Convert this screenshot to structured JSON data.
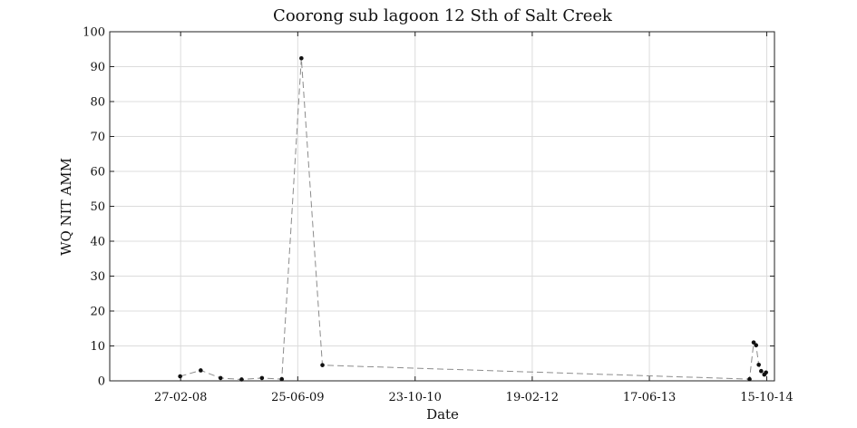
{
  "chart_data": {
    "type": "line",
    "title": "Coorong sub lagoon 12 Sth of Salt Creek",
    "xlabel": "Date",
    "ylabel": "WQ NIT AMM",
    "x_tick_labels": [
      "27-02-08",
      "25-06-09",
      "23-10-10",
      "19-02-12",
      "17-06-13",
      "15-10-14"
    ],
    "x_tick_dates": [
      "2008-02-27",
      "2009-06-25",
      "2010-10-23",
      "2012-02-19",
      "2013-06-17",
      "2014-10-15"
    ],
    "xlim": [
      "2007-05-10",
      "2014-11-16"
    ],
    "ylim": [
      0,
      100
    ],
    "y_ticks": [
      0,
      10,
      20,
      30,
      40,
      50,
      60,
      70,
      80,
      90,
      100
    ],
    "grid": true,
    "series": [
      {
        "color": "#8c8c8c",
        "line_style": "dashed",
        "marker": "dot",
        "points": [
          {
            "x": "2008-02-25",
            "y": 1.3
          },
          {
            "x": "2008-05-20",
            "y": 3.0
          },
          {
            "x": "2008-08-10",
            "y": 0.8
          },
          {
            "x": "2008-11-05",
            "y": 0.4
          },
          {
            "x": "2009-01-28",
            "y": 0.8
          },
          {
            "x": "2009-04-20",
            "y": 0.5
          },
          {
            "x": "2009-07-10",
            "y": 92.4
          },
          {
            "x": "2009-10-05",
            "y": 4.5
          },
          {
            "x": "2014-08-05",
            "y": 0.5
          },
          {
            "x": "2014-08-22",
            "y": 11.0
          },
          {
            "x": "2014-09-01",
            "y": 10.2
          },
          {
            "x": "2014-09-12",
            "y": 4.6
          },
          {
            "x": "2014-09-22",
            "y": 2.8
          },
          {
            "x": "2014-10-05",
            "y": 1.8
          },
          {
            "x": "2014-10-12",
            "y": 2.4
          }
        ]
      }
    ]
  }
}
